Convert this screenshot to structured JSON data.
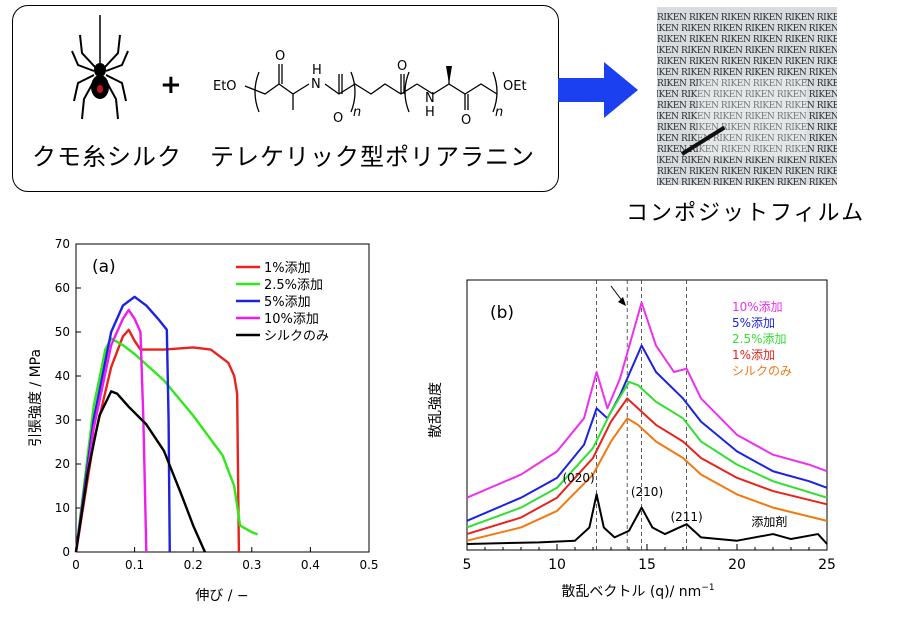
{
  "scheme": {
    "spider_label": "クモ糸シルク",
    "plus": "+",
    "polymer_label": "テレケリック型ポリアラニン",
    "film_label": "コンポジットフィルム",
    "formula": {
      "eto": "EtO",
      "oet": "OEt",
      "nh": "N",
      "h": "H",
      "o": "O",
      "n": "n"
    },
    "photo_text": "RIKEN RIKEN RIKEN RIKEN RIKEN RIKEN"
  },
  "chart_data": [
    {
      "type": "line",
      "panel_label": "(a)",
      "xlabel": "伸び / −",
      "ylabel": "引張強度 / MPa",
      "xlim": [
        0,
        0.5
      ],
      "ylim": [
        0,
        70
      ],
      "xticks": [
        "0",
        "0.1",
        "0.2",
        "0.3",
        "0.4",
        "0.5"
      ],
      "yticks": [
        "0",
        "10",
        "20",
        "30",
        "40",
        "50",
        "60",
        "70"
      ],
      "legend_position": "top-right",
      "series": [
        {
          "name": "1%添加",
          "color": "#e8231d",
          "x": [
            0,
            0.03,
            0.06,
            0.08,
            0.09,
            0.1,
            0.11,
            0.15,
            0.2,
            0.23,
            0.26,
            0.27,
            0.275,
            0.278
          ],
          "y": [
            0,
            25,
            42,
            49,
            50.5,
            48,
            46,
            46,
            46.5,
            46,
            43,
            40,
            36,
            0
          ]
        },
        {
          "name": "2.5%添加",
          "color": "#2ee818",
          "x": [
            0,
            0.03,
            0.05,
            0.06,
            0.08,
            0.1,
            0.15,
            0.2,
            0.25,
            0.27,
            0.28,
            0.3,
            0.31
          ],
          "y": [
            0,
            33,
            46,
            48.5,
            47,
            45,
            39,
            31,
            22,
            15,
            6,
            4.5,
            4
          ]
        },
        {
          "name": "5%添加",
          "color": "#1c22e0",
          "x": [
            0,
            0.03,
            0.06,
            0.08,
            0.1,
            0.12,
            0.14,
            0.155,
            0.158,
            0.16
          ],
          "y": [
            0,
            30,
            50,
            56,
            58,
            56,
            53,
            50.5,
            30,
            0
          ]
        },
        {
          "name": "10%添加",
          "color": "#ee1cee",
          "x": [
            0,
            0.03,
            0.06,
            0.08,
            0.09,
            0.1,
            0.11,
            0.115,
            0.12
          ],
          "y": [
            0,
            28,
            47,
            53,
            55,
            53,
            50,
            30,
            0
          ]
        },
        {
          "name": "シルクのみ",
          "color": "#000000",
          "x": [
            0,
            0.02,
            0.04,
            0.06,
            0.07,
            0.09,
            0.12,
            0.15,
            0.18,
            0.2,
            0.22
          ],
          "y": [
            0,
            18,
            31,
            36.5,
            36,
            33,
            29,
            23,
            13,
            6,
            0
          ]
        }
      ]
    },
    {
      "type": "line",
      "panel_label": "(b)",
      "xlabel": "散乱ベクトル (q)/ nm",
      "xlabel_sup": "−1",
      "ylabel": "散乱強度",
      "xlim": [
        5,
        25
      ],
      "xticks": [
        "5",
        "10",
        "15",
        "20",
        "25"
      ],
      "dashed_lines_x": [
        12.2,
        13.9,
        14.7,
        17.2
      ],
      "legend_position": "top-right",
      "peak_labels": [
        "(020)",
        "(210)",
        "(211)"
      ],
      "additive_label": "添加剤",
      "series": [
        {
          "name": "10%添加",
          "color": "#ee30ee",
          "x": [
            5,
            8,
            10,
            11.5,
            12.2,
            12.8,
            13.5,
            14.7,
            15.5,
            16.5,
            17.2,
            18,
            20,
            22,
            24,
            25
          ],
          "y": [
            14,
            21,
            28,
            38,
            52,
            41,
            50,
            73,
            60,
            52,
            53,
            44,
            33,
            27,
            24,
            22
          ]
        },
        {
          "name": "5%添加",
          "color": "#1c22e0",
          "x": [
            5,
            8,
            10,
            11.5,
            12.2,
            12.8,
            13.5,
            14.7,
            15.5,
            17,
            18,
            20,
            22,
            24,
            25
          ],
          "y": [
            7,
            14,
            20,
            30,
            41,
            38,
            45,
            60,
            52,
            44,
            37,
            28,
            22,
            19,
            17
          ]
        },
        {
          "name": "2.5%添加",
          "color": "#30e030",
          "x": [
            5,
            8,
            10,
            12,
            13,
            14,
            14.5,
            15.5,
            17,
            18,
            20,
            22,
            25
          ],
          "y": [
            5,
            11,
            17,
            29,
            40,
            49,
            48,
            43,
            38,
            31,
            24,
            19,
            14
          ]
        },
        {
          "name": "1%添加",
          "color": "#e8231d",
          "x": [
            5,
            8,
            10,
            12,
            13,
            13.9,
            14.5,
            15.5,
            17,
            18,
            20,
            22,
            25
          ],
          "y": [
            3,
            8,
            14,
            26,
            37,
            44,
            41,
            36,
            31,
            26,
            20,
            16,
            12
          ]
        },
        {
          "name": "シルクのみ",
          "color": "#f07a10",
          "x": [
            5,
            8,
            10,
            12,
            13,
            13.9,
            14.5,
            15.5,
            17,
            18,
            20,
            22,
            25
          ],
          "y": [
            1,
            5,
            10,
            21,
            31,
            38,
            36,
            31,
            26,
            21,
            15,
            11,
            7
          ]
        },
        {
          "name": "添加剤",
          "color": "#000000",
          "x": [
            5,
            9,
            11,
            11.8,
            12.2,
            12.6,
            13.2,
            14,
            14.7,
            15.3,
            16,
            16.8,
            17.2,
            18,
            20,
            22,
            23,
            24.5,
            25
          ],
          "y": [
            0,
            0.5,
            1,
            5,
            15,
            5,
            2,
            4,
            11,
            5,
            3,
            5,
            6,
            2,
            1,
            3,
            1.5,
            3,
            0
          ]
        }
      ]
    }
  ]
}
